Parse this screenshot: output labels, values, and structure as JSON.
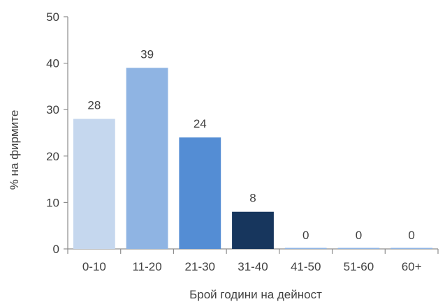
{
  "chart_data": {
    "type": "bar",
    "categories": [
      "0-10",
      "11-20",
      "21-30",
      "31-40",
      "41-50",
      "51-60",
      "60+"
    ],
    "values": [
      28,
      39,
      24,
      8,
      0,
      0,
      0
    ],
    "data_labels": [
      "28",
      "39",
      "24",
      "8",
      "0",
      "0",
      "0"
    ],
    "colors": [
      "#c5d7ee",
      "#8fb4e3",
      "#548dd4",
      "#17365d",
      "#8fb4e3",
      "#8fb4e3",
      "#8fb4e3"
    ],
    "title": "",
    "xlabel": "Брой години на дейност",
    "ylabel": "% на фирмите",
    "ylim": [
      0,
      50
    ],
    "yticks": [
      0,
      10,
      20,
      30,
      40,
      50
    ],
    "grid": false,
    "legend": "none"
  }
}
